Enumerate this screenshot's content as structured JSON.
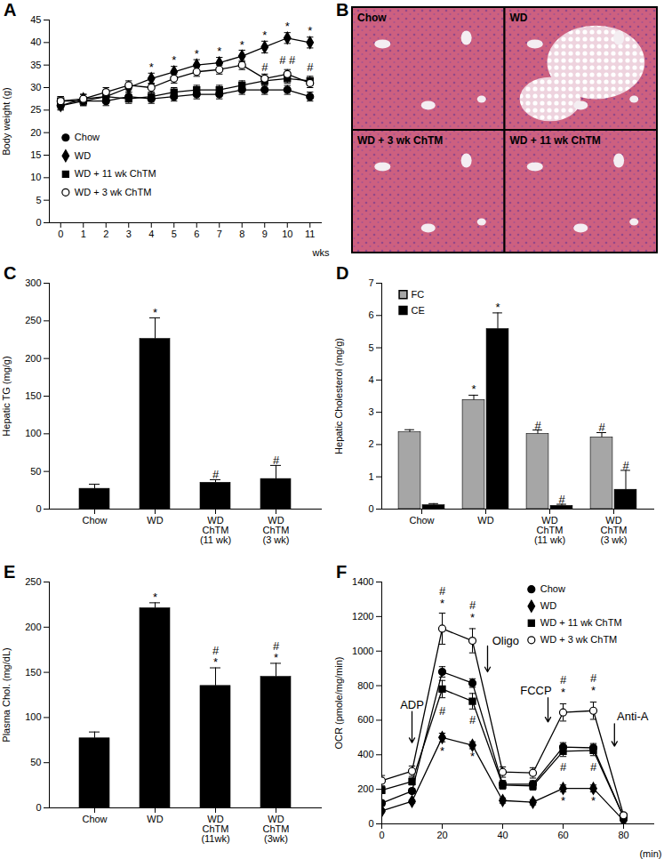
{
  "chart_data": [
    {
      "panel": "A",
      "type": "line",
      "ylabel": "Body weight (g)",
      "xlabel": "wks",
      "x": [
        0,
        1,
        2,
        3,
        4,
        5,
        6,
        7,
        8,
        9,
        10,
        11
      ],
      "xlim": [
        -0.5,
        11.5
      ],
      "xticks": [
        0,
        1,
        2,
        3,
        4,
        5,
        6,
        7,
        8,
        9,
        10,
        11
      ],
      "ylim": [
        0,
        45
      ],
      "yticks": [
        0,
        5,
        10,
        15,
        20,
        25,
        30,
        35,
        40,
        45
      ],
      "legend": "lower-left",
      "series": [
        {
          "name": "Chow",
          "color": "#000000",
          "marker": "circle",
          "values": [
            26,
            27,
            27,
            28,
            27.5,
            28,
            28.5,
            28.5,
            29.5,
            29.5,
            29.5,
            28
          ],
          "errors": [
            1,
            1,
            1,
            1,
            1,
            1,
            1,
            1,
            1,
            1,
            1,
            1
          ]
        },
        {
          "name": "WD",
          "color": "#000000",
          "marker": "diamond",
          "values": [
            26,
            27.5,
            28,
            30,
            32,
            33.5,
            35,
            35.5,
            37,
            39,
            41,
            40
          ],
          "errors": [
            0.8,
            1,
            1,
            1,
            1.2,
            1.2,
            1.2,
            1.2,
            1.3,
            1.3,
            1.2,
            1.2
          ]
        },
        {
          "name": "WD + 11 wk ChTM",
          "color": "#000000",
          "marker": "square",
          "values": [
            27,
            27,
            28,
            27.5,
            28,
            29,
            29.5,
            29.5,
            30.5,
            31.5,
            32,
            31.5
          ],
          "errors": [
            1,
            1,
            1,
            1,
            1,
            1,
            1,
            1,
            1,
            1,
            1,
            1
          ]
        },
        {
          "name": "WD + 3 wk ChTM",
          "color": "#000000",
          "marker": "open circle",
          "values": [
            27,
            27.5,
            29,
            30.5,
            30,
            32,
            33.5,
            34,
            35,
            32,
            33,
            31
          ],
          "errors": [
            1,
            1,
            1,
            1,
            1,
            1,
            1,
            1,
            1,
            1,
            1,
            1
          ]
        }
      ],
      "annotations": [
        {
          "x": 4,
          "y": 34.5,
          "text": "*"
        },
        {
          "x": 5,
          "y": 36,
          "text": "*"
        },
        {
          "x": 6,
          "y": 37.5,
          "text": "*"
        },
        {
          "x": 7,
          "y": 38,
          "text": "*"
        },
        {
          "x": 8,
          "y": 39.5,
          "text": "*"
        },
        {
          "x": 9,
          "y": 41.5,
          "text": "*"
        },
        {
          "x": 10,
          "y": 43.5,
          "text": "*"
        },
        {
          "x": 11,
          "y": 42.5,
          "text": "*"
        },
        {
          "x": 9,
          "y": 34.5,
          "text": "#"
        },
        {
          "x": 10,
          "y": 36,
          "text": "# #"
        },
        {
          "x": 11,
          "y": 34.5,
          "text": "#"
        }
      ]
    },
    {
      "panel": "B",
      "type": "image",
      "labels": [
        "Chow",
        "WD",
        "WD + 3 wk ChTM",
        "WD + 11 wk ChTM"
      ]
    },
    {
      "panel": "C",
      "type": "bar",
      "ylabel": "Hepatic TG (mg/g)",
      "categories": [
        "Chow",
        "WD",
        "WD\nChTM\n(11 wk)",
        "WD\nChTM\n(3 wk)"
      ],
      "values": [
        27,
        226,
        35,
        40
      ],
      "errors": [
        6,
        28,
        4,
        18
      ],
      "color": "#000000",
      "ylim": [
        0,
        300
      ],
      "yticks": [
        0,
        50,
        100,
        150,
        200,
        250,
        300
      ],
      "annotations": [
        {
          "category": "WD",
          "y": 256,
          "text": "*"
        },
        {
          "category": "WD\nChTM\n(11 wk)",
          "y": 41,
          "text": "#"
        },
        {
          "category": "WD\nChTM\n(3 wk)",
          "y": 60,
          "text": "#"
        }
      ]
    },
    {
      "panel": "D",
      "type": "bar",
      "ylabel": "Hepatic Cholesterol (mg/g)",
      "categories": [
        "Chow",
        "WD",
        "WD\nChTM\n(11 wk)",
        "WD\nChTM\n(3 wk)"
      ],
      "series": [
        {
          "name": "FC",
          "color": "#a6a6a6",
          "values": [
            2.38,
            3.38,
            2.33,
            2.22
          ],
          "errors": [
            0.08,
            0.15,
            0.12,
            0.15
          ]
        },
        {
          "name": "CE",
          "color": "#000000",
          "values": [
            0.12,
            5.58,
            0.1,
            0.6
          ],
          "errors": [
            0.05,
            0.5,
            0.05,
            0.6
          ]
        }
      ],
      "ylim": [
        0,
        7
      ],
      "yticks": [
        0,
        1,
        2,
        3,
        4,
        5,
        6,
        7
      ],
      "legend": "upper-left",
      "annotations": [
        {
          "category": "WD",
          "series": "FC",
          "y": 3.6,
          "text": "*"
        },
        {
          "category": "WD",
          "series": "CE",
          "y": 6.12,
          "text": "*"
        },
        {
          "category": "WD\nChTM\n(11 wk)",
          "series": "FC",
          "y": 2.48,
          "text": "#"
        },
        {
          "category": "WD\nChTM\n(11 wk)",
          "series": "CE",
          "y": 0.18,
          "text": "#"
        },
        {
          "category": "WD\nChTM\n(3 wk)",
          "series": "FC",
          "y": 2.4,
          "text": "#"
        },
        {
          "category": "WD\nChTM\n(3 wk)",
          "series": "CE",
          "y": 1.23,
          "text": "#"
        }
      ]
    },
    {
      "panel": "E",
      "type": "bar",
      "ylabel": "Plasma Chol. (mg/dL)",
      "categories": [
        "Chow",
        "WD",
        "WD\nChTM\n(11wk)",
        "WD\nChTM\n(3wk)"
      ],
      "values": [
        77,
        221,
        135,
        145
      ],
      "errors": [
        7,
        6,
        20,
        15
      ],
      "color": "#000000",
      "ylim": [
        0,
        250
      ],
      "yticks": [
        0,
        50,
        100,
        150,
        200,
        250
      ],
      "annotations": [
        {
          "category": "WD",
          "y": 229,
          "text": "*"
        },
        {
          "category": "WD\nChTM\n(11wk)",
          "y": 157,
          "text": "#\n*"
        },
        {
          "category": "WD\nChTM\n(3wk)",
          "y": 162,
          "text": "#\n*"
        }
      ]
    },
    {
      "panel": "F",
      "type": "line",
      "ylabel": "OCR (pmole/mg/min)",
      "xlabel": "(min)",
      "x": [
        0,
        10,
        20,
        30,
        40,
        50,
        60,
        70,
        80
      ],
      "xlim": [
        0,
        90
      ],
      "xticks": [
        0,
        20,
        40,
        60,
        80
      ],
      "ylim": [
        0,
        1400
      ],
      "yticks": [
        0,
        200,
        400,
        600,
        800,
        1000,
        1200,
        1400
      ],
      "legend": "upper-right",
      "series": [
        {
          "name": "Chow",
          "color": "#000000",
          "marker": "circle",
          "values": [
            120,
            190,
            880,
            815,
            230,
            230,
            445,
            440,
            40
          ],
          "errors": [
            15,
            15,
            30,
            25,
            20,
            20,
            25,
            25,
            5
          ]
        },
        {
          "name": "WD",
          "color": "#000000",
          "marker": "diamond",
          "values": [
            75,
            130,
            500,
            455,
            135,
            125,
            205,
            205,
            20
          ],
          "errors": [
            10,
            10,
            25,
            20,
            15,
            15,
            20,
            20,
            5
          ]
        },
        {
          "name": "WD + 11 wk ChTM",
          "color": "#000000",
          "marker": "square",
          "values": [
            195,
            245,
            780,
            710,
            225,
            220,
            420,
            425,
            40
          ],
          "errors": [
            20,
            20,
            50,
            45,
            25,
            25,
            30,
            30,
            8
          ]
        },
        {
          "name": "WD + 3 wk ChTM",
          "color": "#000000",
          "marker": "open circle",
          "values": [
            250,
            305,
            1130,
            1060,
            300,
            295,
            645,
            655,
            50
          ],
          "errors": [
            30,
            30,
            90,
            70,
            30,
            30,
            50,
            50,
            10
          ]
        }
      ],
      "annotations": [
        {
          "x": 20,
          "y": 1345,
          "text": "#"
        },
        {
          "x": 20,
          "y": 1275,
          "text": "*"
        },
        {
          "x": 30,
          "y": 1265,
          "text": "#"
        },
        {
          "x": 30,
          "y": 1195,
          "text": "*"
        },
        {
          "x": 20,
          "y": 650,
          "text": "#"
        },
        {
          "x": 20,
          "y": 420,
          "text": "*"
        },
        {
          "x": 30,
          "y": 600,
          "text": "#"
        },
        {
          "x": 30,
          "y": 390,
          "text": "*"
        },
        {
          "x": 60,
          "y": 830,
          "text": "#"
        },
        {
          "x": 60,
          "y": 760,
          "text": "*"
        },
        {
          "x": 70,
          "y": 840,
          "text": "#"
        },
        {
          "x": 70,
          "y": 770,
          "text": "*"
        },
        {
          "x": 60,
          "y": 330,
          "text": "#"
        },
        {
          "x": 60,
          "y": 130,
          "text": "*"
        },
        {
          "x": 70,
          "y": 330,
          "text": "#"
        },
        {
          "x": 70,
          "y": 130,
          "text": "*"
        },
        {
          "x": 10,
          "y": 690,
          "text": "ADP"
        },
        {
          "x": 41,
          "y": 1060,
          "text": "Oligo"
        },
        {
          "x": 51,
          "y": 770,
          "text": "FCCP"
        },
        {
          "x": 83,
          "y": 620,
          "text": "Anti-A"
        }
      ],
      "arrows": [
        {
          "x": 10,
          "y1": 650,
          "y2": 470
        },
        {
          "x": 35,
          "y1": 1030,
          "y2": 880
        },
        {
          "x": 55,
          "y1": 730,
          "y2": 590
        },
        {
          "x": 77,
          "y1": 580,
          "y2": 450
        }
      ]
    }
  ]
}
